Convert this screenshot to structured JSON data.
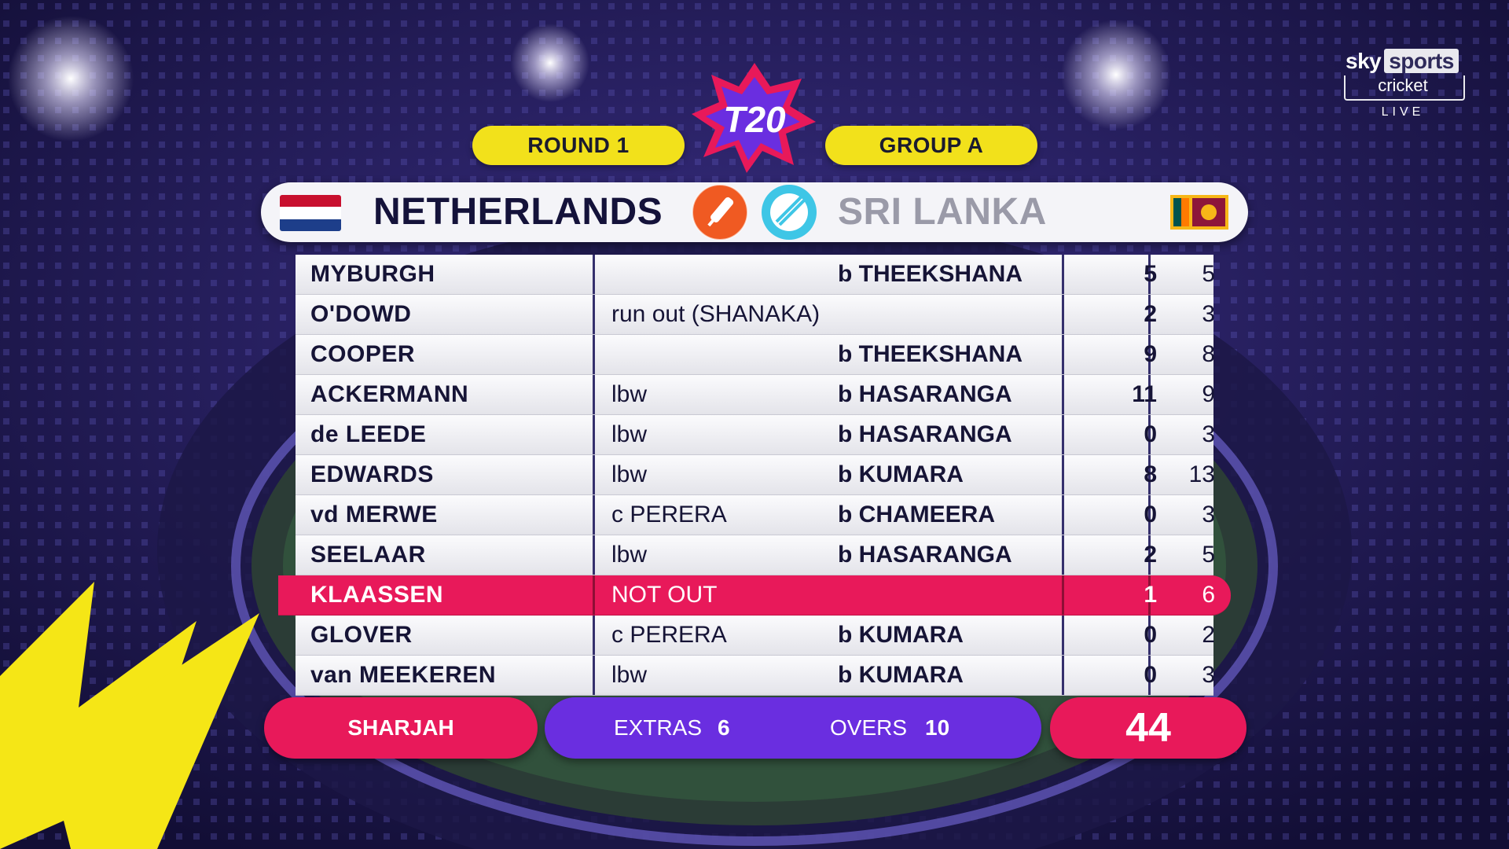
{
  "header": {
    "round_label": "ROUND 1",
    "group_label": "GROUP A",
    "tournament_logo_text": "T20"
  },
  "broadcaster": {
    "brand": "sky",
    "channel": "sports",
    "sub": "cricket",
    "status": "LIVE"
  },
  "teams": {
    "batting": "NETHERLANDS",
    "bowling": "SRI LANKA",
    "batting_icon": "bat-icon",
    "bowling_icon": "ball-icon"
  },
  "batting_card": [
    {
      "name": "MYBURGH",
      "how_out": "",
      "bowler": "b THEEKSHANA",
      "runs": "5",
      "balls": "5"
    },
    {
      "name": "O'DOWD",
      "how_out": "run out (SHANAKA)",
      "bowler": "",
      "runs": "2",
      "balls": "3"
    },
    {
      "name": "COOPER",
      "how_out": "",
      "bowler": "b THEEKSHANA",
      "runs": "9",
      "balls": "8"
    },
    {
      "name": "ACKERMANN",
      "how_out": "lbw",
      "bowler": "b HASARANGA",
      "runs": "11",
      "balls": "9"
    },
    {
      "name": "de LEEDE",
      "how_out": "lbw",
      "bowler": "b HASARANGA",
      "runs": "0",
      "balls": "3"
    },
    {
      "name": "EDWARDS",
      "how_out": "lbw",
      "bowler": "b KUMARA",
      "runs": "8",
      "balls": "13"
    },
    {
      "name": "vd MERWE",
      "how_out": "c PERERA",
      "bowler": "b CHAMEERA",
      "runs": "0",
      "balls": "3"
    },
    {
      "name": "SEELAAR",
      "how_out": "lbw",
      "bowler": "b HASARANGA",
      "runs": "2",
      "balls": "5"
    },
    {
      "name": "KLAASSEN",
      "how_out": "NOT OUT",
      "bowler": "",
      "runs": "1",
      "balls": "6"
    },
    {
      "name": "GLOVER",
      "how_out": "c PERERA",
      "bowler": "b KUMARA",
      "runs": "0",
      "balls": "2"
    },
    {
      "name": "van MEEKEREN",
      "how_out": "lbw",
      "bowler": "b KUMARA",
      "runs": "0",
      "balls": "3"
    }
  ],
  "summary": {
    "venue": "SHARJAH",
    "extras_label": "EXTRAS",
    "extras_value": "6",
    "overs_label": "OVERS",
    "overs_value": "10",
    "total": "44"
  },
  "colors": {
    "accent_pink": "#e8195a",
    "accent_purple": "#6a2ee0",
    "accent_yellow": "#f2e11b",
    "navy_text": "#14123a"
  }
}
